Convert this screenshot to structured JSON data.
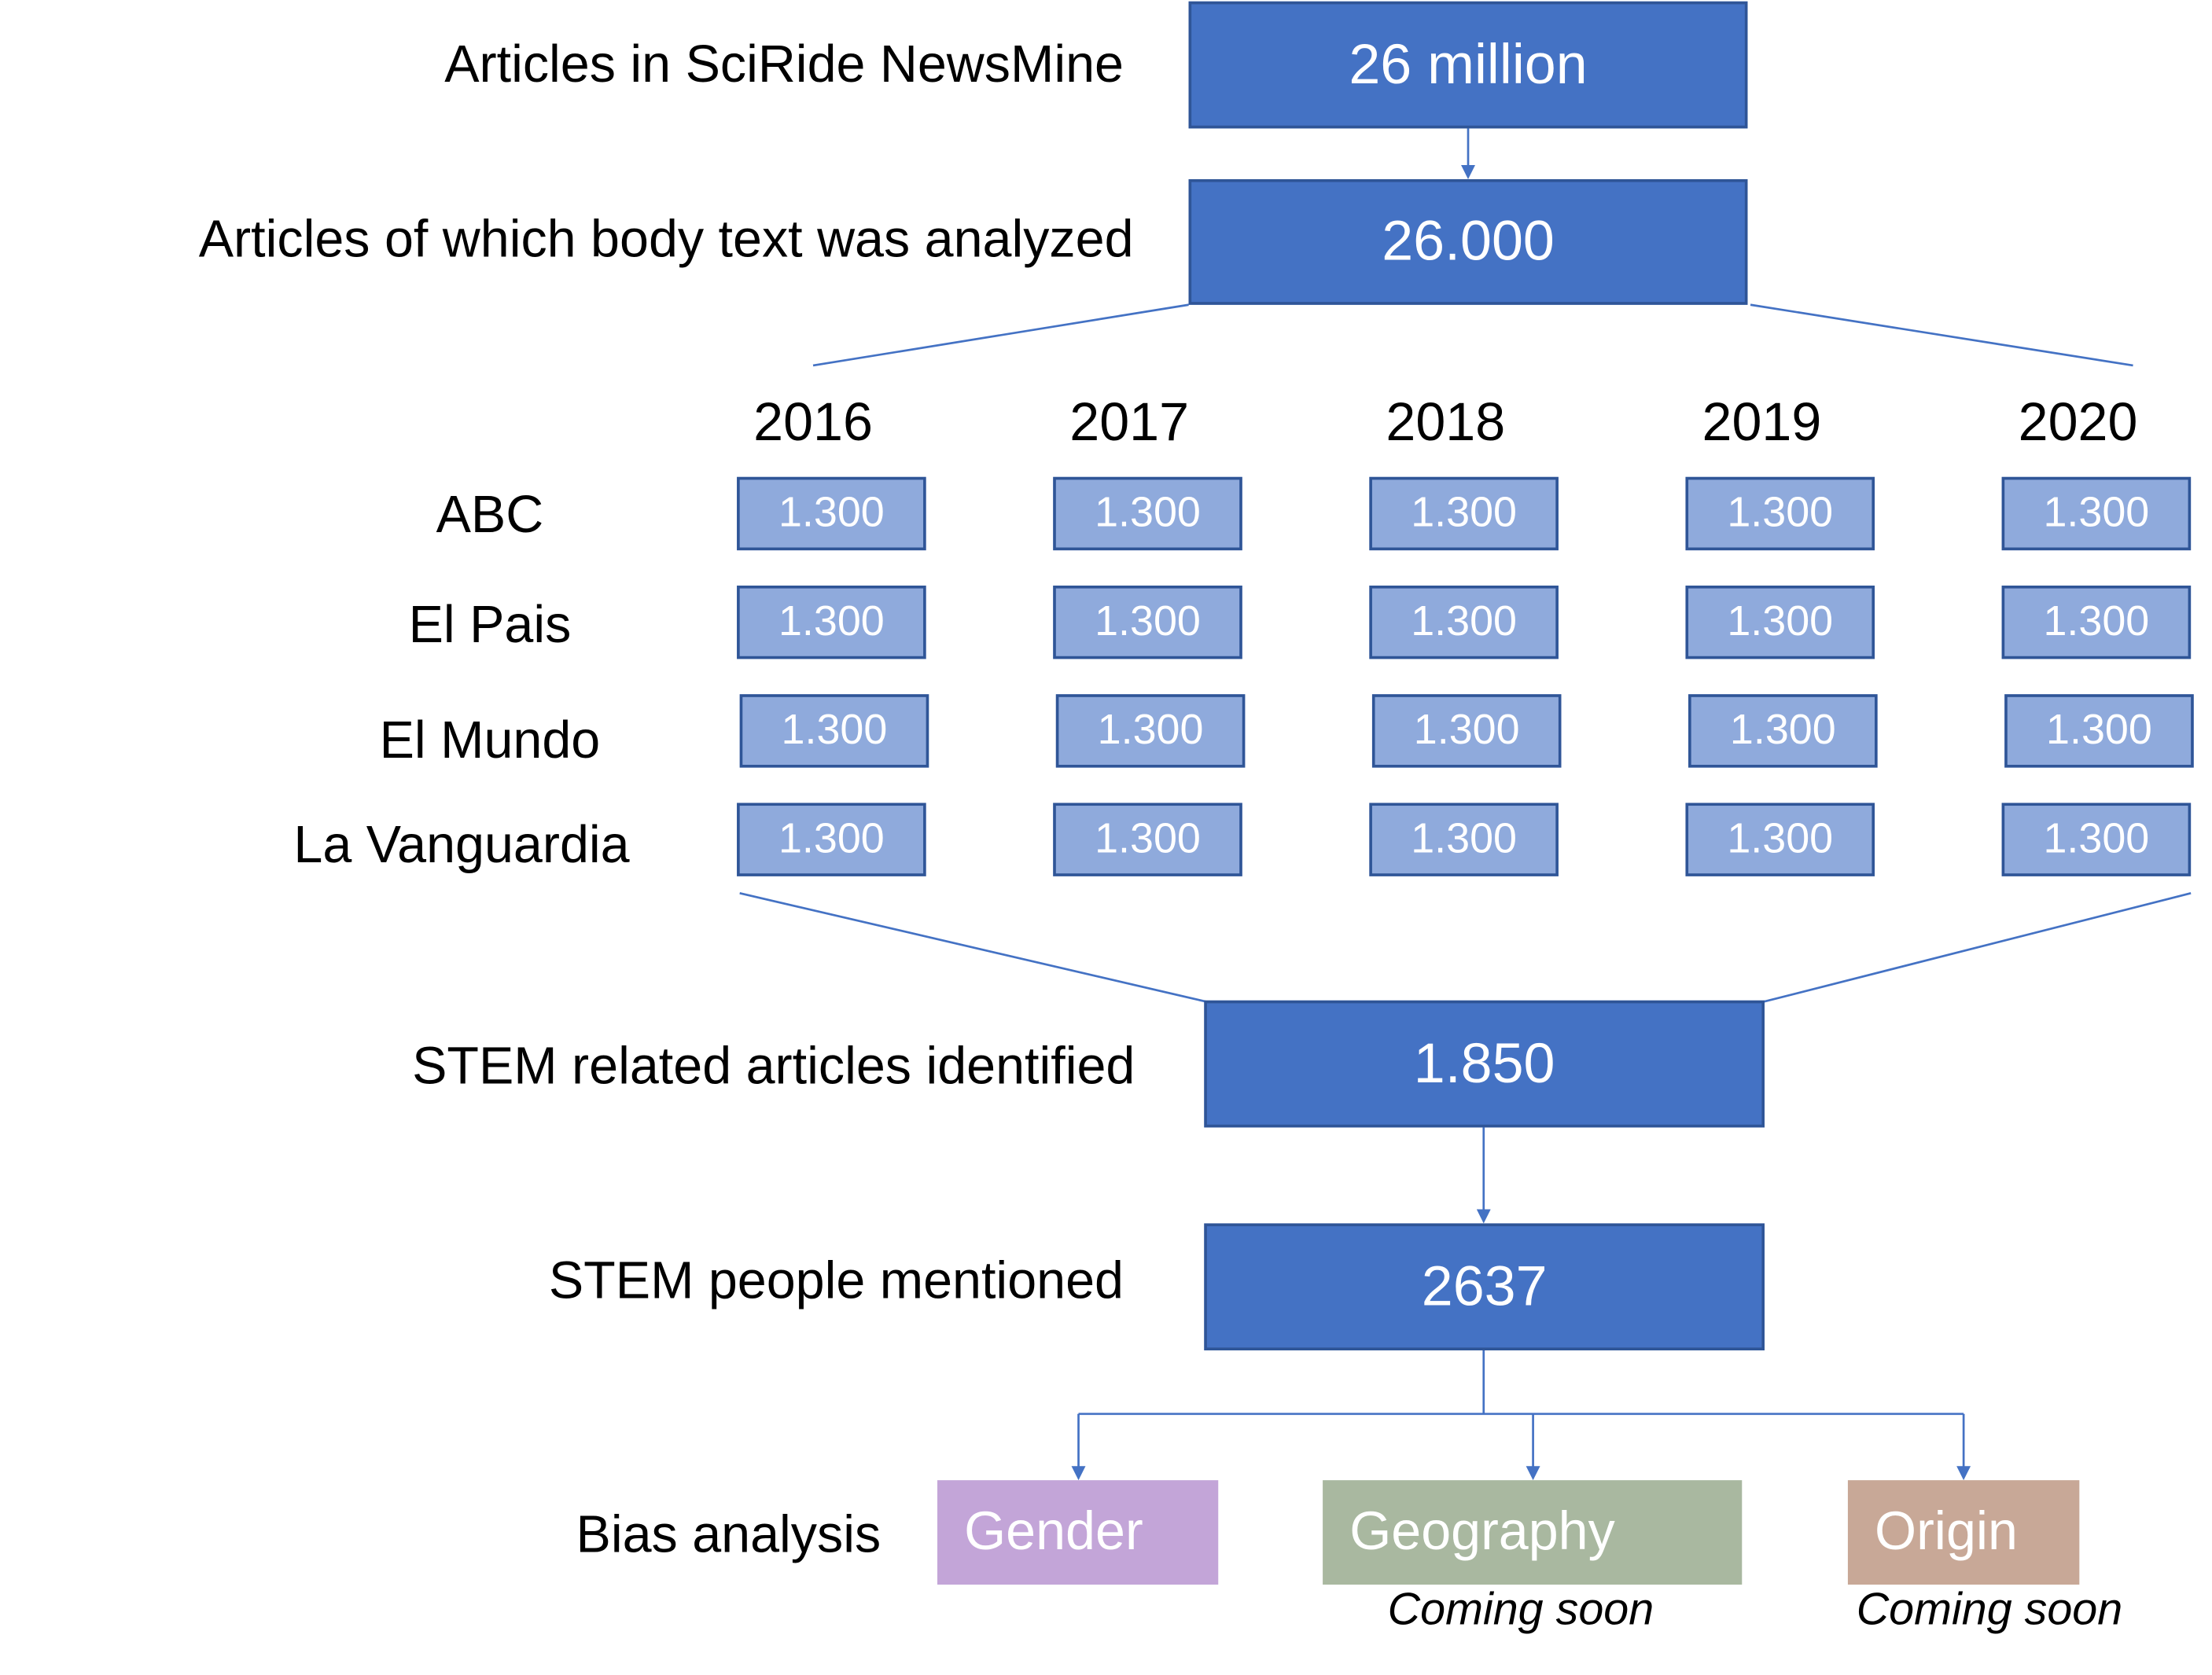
{
  "steps": {
    "articles": {
      "label": "Articles in SciRide NewsMine",
      "value": "26 million"
    },
    "analyzed": {
      "label": "Articles of which body text was analyzed",
      "value": "26.000"
    },
    "stem_articles": {
      "label": "STEM related articles identified",
      "value": "1.850"
    },
    "stem_people": {
      "label": "STEM people mentioned",
      "value": "2637"
    }
  },
  "grid": {
    "years": [
      "2016",
      "2017",
      "2018",
      "2019",
      "2020"
    ],
    "sources": [
      "ABC",
      "El Pais",
      "El Mundo",
      "La Vanguardia"
    ],
    "cells": [
      [
        "1.300",
        "1.300",
        "1.300",
        "1.300",
        "1.300"
      ],
      [
        "1.300",
        "1.300",
        "1.300",
        "1.300",
        "1.300"
      ],
      [
        "1.300",
        "1.300",
        "1.300",
        "1.300",
        "1.300"
      ],
      [
        "1.300",
        "1.300",
        "1.300",
        "1.300",
        "1.300"
      ]
    ]
  },
  "bias": {
    "label": "Bias analysis",
    "items": [
      {
        "label": "Gender",
        "note": "",
        "color": "#C3A5D8"
      },
      {
        "label": "Geography",
        "note": "Coming soon",
        "color": "#A9B8A0"
      },
      {
        "label": "Origin",
        "note": "Coming soon",
        "color": "#C8A897"
      }
    ]
  },
  "colors": {
    "box_fill": "#4472C4",
    "small_box_fill": "#8FAADC",
    "border": "#2F5597",
    "connector": "#4472C4"
  }
}
